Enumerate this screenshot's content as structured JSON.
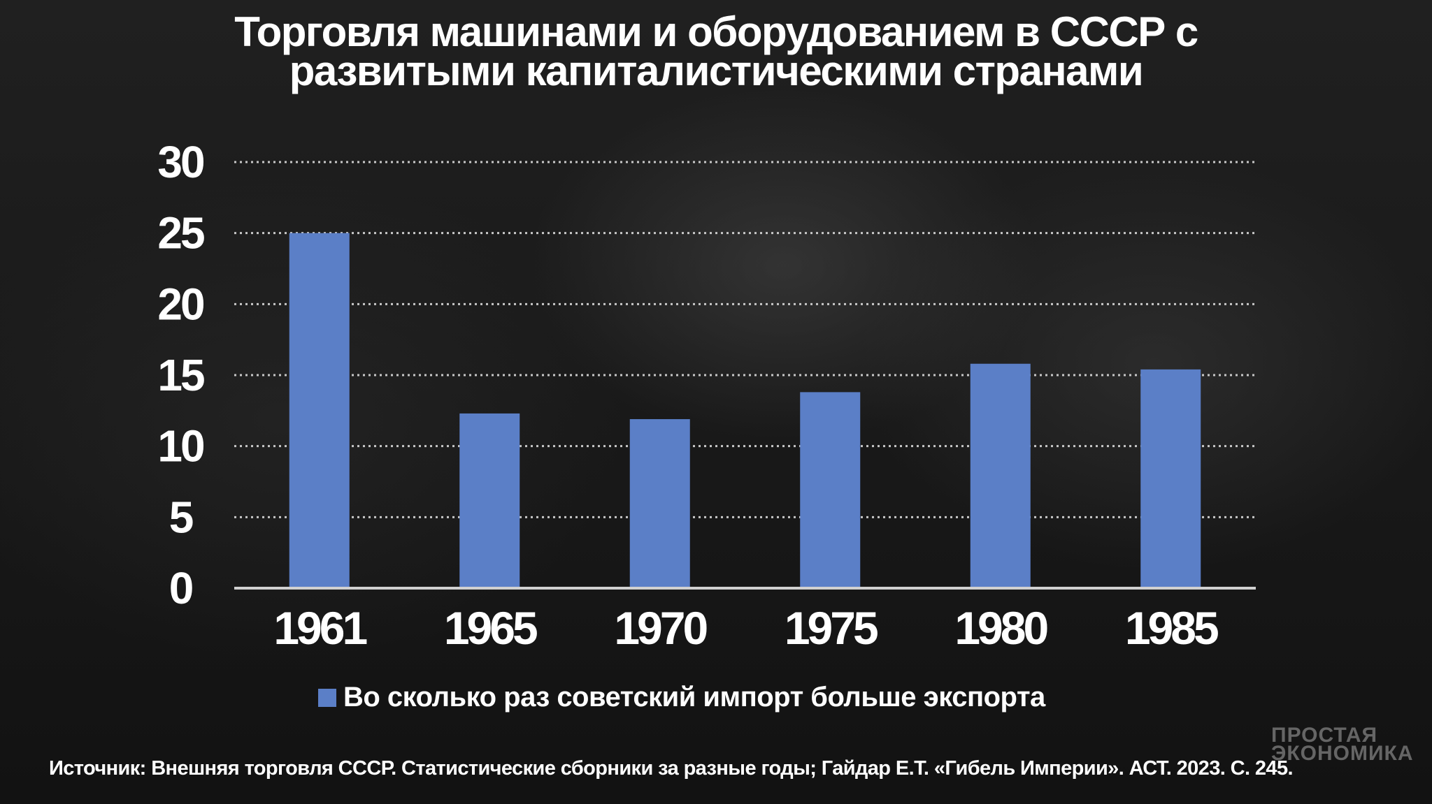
{
  "chart_data": {
    "type": "bar",
    "title": "Торговля машинами и оборудованием в СССР с развитыми капиталистическими странами",
    "title_lines": [
      "Торговля машинами и оборудованием в СССР с",
      "развитыми капиталистическими странами"
    ],
    "categories": [
      "1961",
      "1965",
      "1970",
      "1975",
      "1980",
      "1985"
    ],
    "series": [
      {
        "name": "Во сколько раз советский импорт больше экспорта",
        "values": [
          25,
          12.3,
          11.9,
          13.8,
          15.8,
          15.4
        ],
        "color": "#5b7fc7"
      }
    ],
    "ylim": [
      0,
      30
    ],
    "yticks": [
      "0",
      "5",
      "10",
      "15",
      "20",
      "25",
      "30"
    ],
    "grid": true,
    "legend_position": "bottom"
  },
  "watermark": [
    "ПРОСТАЯ",
    "ЭКОНОМИКА"
  ],
  "source": "Источник: Внешняя торговля СССР. Статистические сборники за разные годы; Гайдар Е.Т. «Гибель Империи». АСТ. 2023. С. 245."
}
